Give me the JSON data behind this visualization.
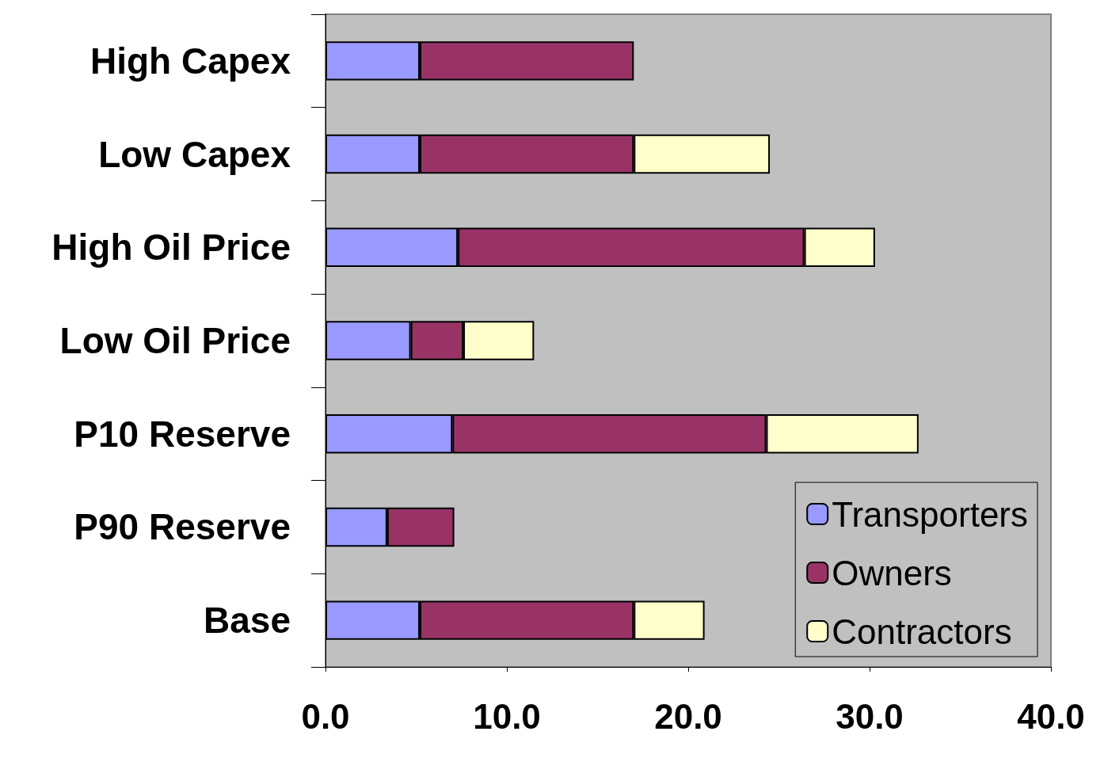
{
  "chart_data": {
    "type": "bar",
    "orientation": "horizontal",
    "stacked": true,
    "categories": [
      "High Capex",
      "Low Capex",
      "High Oil Price",
      "Low Oil Price",
      "P10 Reserve",
      "P90 Reserve",
      "Base"
    ],
    "series": [
      {
        "name": "Transporters",
        "color": "#9999ff",
        "values": [
          5.2,
          5.2,
          7.3,
          4.7,
          7.0,
          3.4,
          5.2
        ]
      },
      {
        "name": "Owners",
        "color": "#993366",
        "values": [
          11.8,
          11.8,
          19.1,
          2.9,
          17.3,
          3.7,
          11.8
        ]
      },
      {
        "name": "Contractors",
        "color": "#ffffcc",
        "values": [
          null,
          7.5,
          3.9,
          3.9,
          8.4,
          null,
          3.9
        ]
      }
    ],
    "xlim": [
      0,
      40
    ],
    "xticks": [
      {
        "value": 0,
        "label": "0.0"
      },
      {
        "value": 10,
        "label": "10.0"
      },
      {
        "value": 20,
        "label": "20.0"
      },
      {
        "value": 30,
        "label": "30.0"
      },
      {
        "value": 40,
        "label": "40.0"
      }
    ],
    "grid": false,
    "legend": "bottom right"
  }
}
